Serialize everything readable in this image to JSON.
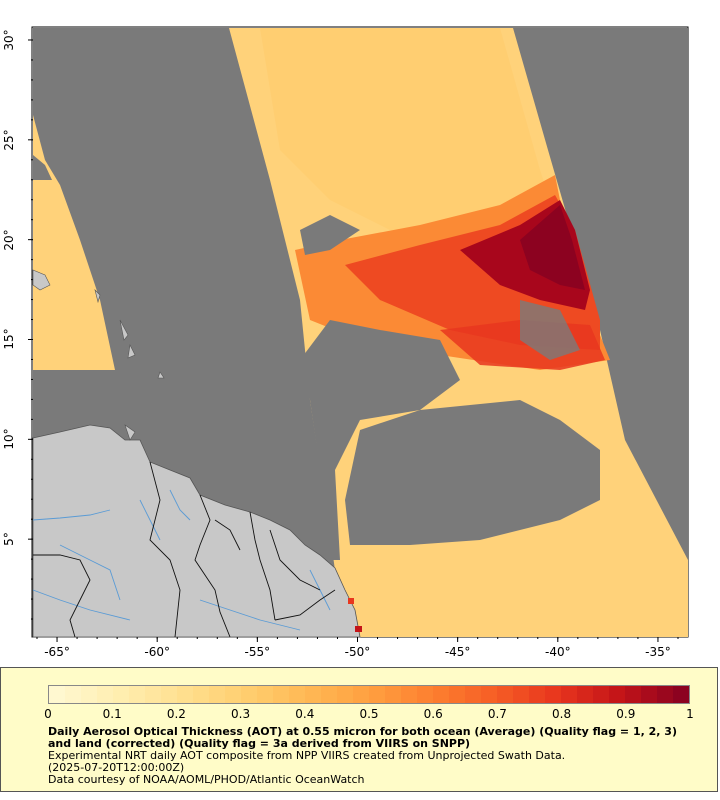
{
  "map": {
    "x_ticks": [
      {
        "label": "-65°",
        "lon": -65
      },
      {
        "label": "-60°",
        "lon": -60
      },
      {
        "label": "-55°",
        "lon": -55
      },
      {
        "label": "-50°",
        "lon": -50
      },
      {
        "label": "-45°",
        "lon": -45
      },
      {
        "label": "-40°",
        "lon": -40
      },
      {
        "label": "-35°",
        "lon": -35
      }
    ],
    "y_ticks": [
      {
        "label": "5°",
        "lat": 5
      },
      {
        "label": "10°",
        "lat": 10
      },
      {
        "label": "15°",
        "lat": 15
      },
      {
        "label": "20°",
        "lat": 20
      },
      {
        "label": "25°",
        "lat": 25
      },
      {
        "label": "30°",
        "lat": 30
      }
    ],
    "extent": {
      "lon_min": -66.2,
      "lon_max": -33.5,
      "lat_min": 0.1,
      "lat_max": 30.6
    },
    "colors": {
      "no_data": "#7a7a7a",
      "land": "#c8c8c8",
      "coastline": "#555555",
      "border": "#111111",
      "river": "#5a9bd5"
    }
  },
  "colorbar": {
    "min": 0,
    "max": 1,
    "ticks": [
      {
        "label": "0",
        "value": 0
      },
      {
        "label": "0.1",
        "value": 0.1
      },
      {
        "label": "0.2",
        "value": 0.2
      },
      {
        "label": "0.3",
        "value": 0.3
      },
      {
        "label": "0.4",
        "value": 0.4
      },
      {
        "label": "0.5",
        "value": 0.5
      },
      {
        "label": "0.6",
        "value": 0.6
      },
      {
        "label": "0.7",
        "value": 0.7
      },
      {
        "label": "0.8",
        "value": 0.8
      },
      {
        "label": "0.9",
        "value": 0.9
      },
      {
        "label": "1",
        "value": 1
      }
    ],
    "colors": [
      "#fff8d0",
      "#ffeeb0",
      "#ffe090",
      "#ffcf70",
      "#ffb955",
      "#ffa040",
      "#fd8030",
      "#f65e25",
      "#e8361e",
      "#c41418",
      "#8c0220"
    ]
  },
  "legend": {
    "title": "Daily Aerosol Optical Thickness (AOT) at 0.55 micron for both ocean (Average) (Quality flag = 1, 2, 3) and land (corrected) (Quality flag = 3a derived from VIIRS on SNPP)",
    "line1": "Experimental NRT daily AOT composite from NPP VIIRS created from Unprojected Swath Data.",
    "line2": "(2025-07-20T12:00:00Z)",
    "line3": "Data courtesy of NOAA/AOML/PHOD/Atlantic OceanWatch"
  }
}
